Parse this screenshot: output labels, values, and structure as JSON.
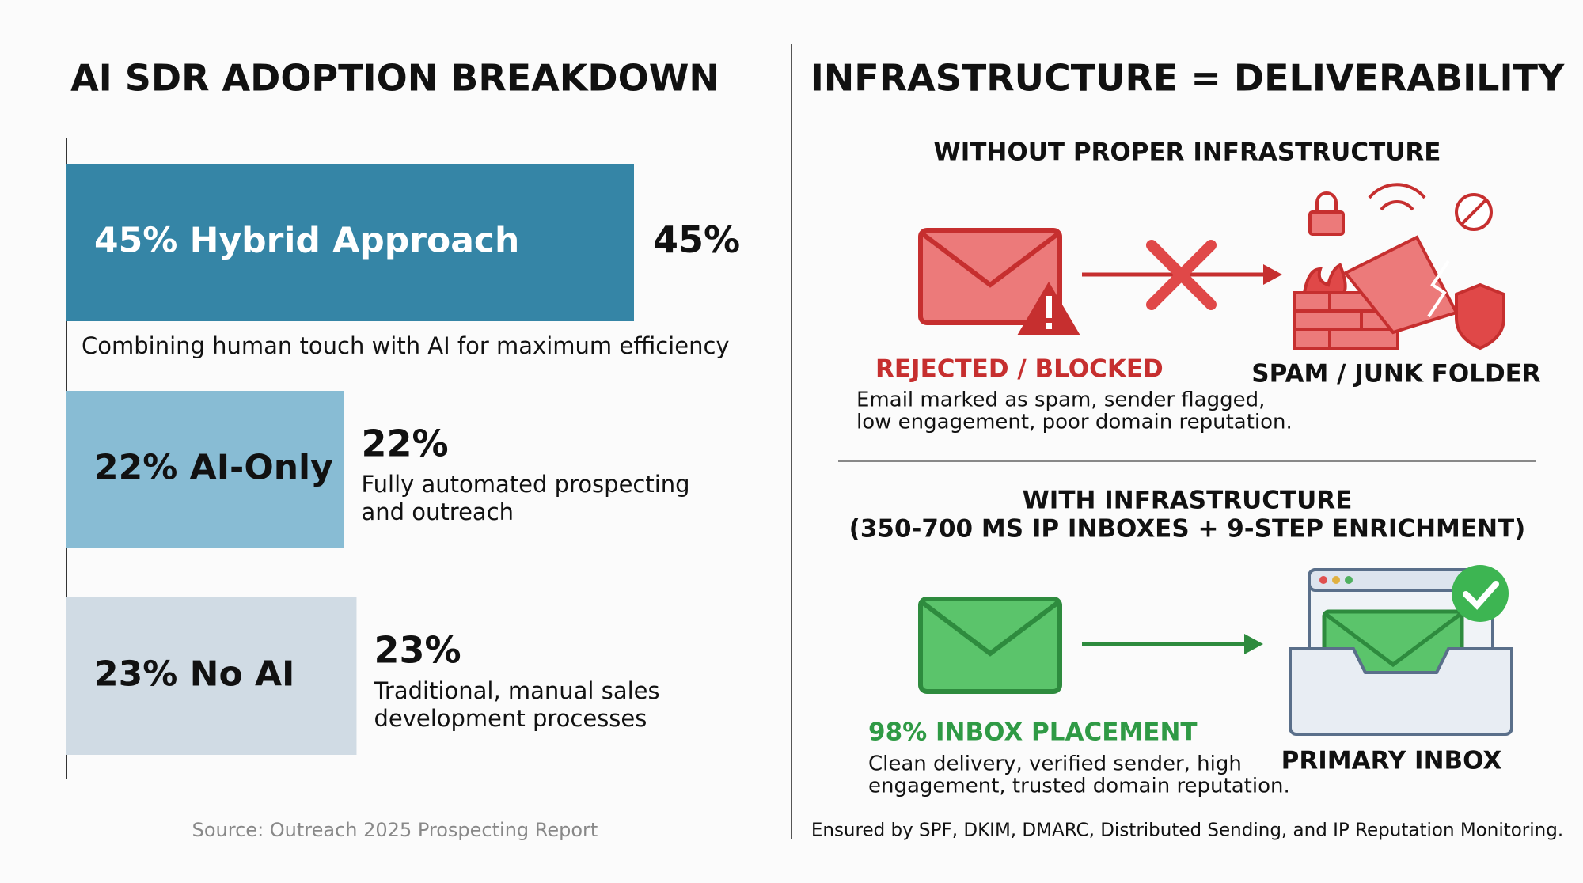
{
  "chart_data": {
    "type": "hbar",
    "title": "AI SDR ADOPTION BREAKDOWN",
    "categories": [
      "45% Hybrid Approach",
      "22% AI-Only",
      "23% No AI"
    ],
    "values": [
      45,
      22,
      23
    ],
    "value_labels": [
      "45%",
      "22%",
      "23%"
    ],
    "descriptions": [
      [
        "Combining human touch with AI for maximum efficiency"
      ],
      [
        "Fully automated prospecting",
        "and outreach"
      ],
      [
        "Traditional, manual sales",
        "development processes"
      ]
    ],
    "colors": [
      "#3585a6",
      "#88bcd4",
      "#d0dbe4"
    ],
    "label_colors": [
      "#ffffff",
      "#111111",
      "#111111"
    ],
    "xlim": [
      0,
      45
    ],
    "source": "Source: Outreach 2025 Prospecting Report"
  },
  "infrastructure": {
    "title": "INFRASTRUCTURE = DELIVERABILITY",
    "without": {
      "heading": "WITHOUT PROPER INFRASTRUCTURE",
      "status": "REJECTED / BLOCKED",
      "description": [
        "Email marked as spam, sender flagged,",
        "low engagement, poor domain reputation."
      ],
      "destination": "SPAM / JUNK FOLDER"
    },
    "with": {
      "heading": [
        "WITH INFRASTRUCTURE",
        "(350-700 MS IP INBOXES + 9-STEP ENRICHMENT)"
      ],
      "status": "98% INBOX PLACEMENT",
      "description": [
        "Clean delivery, verified sender, high",
        "engagement, trusted domain reputation."
      ],
      "destination": "PRIMARY INBOX"
    },
    "footer": "Ensured by SPF, DKIM, DMARC, Distributed Sending, and IP Reputation Monitoring."
  }
}
